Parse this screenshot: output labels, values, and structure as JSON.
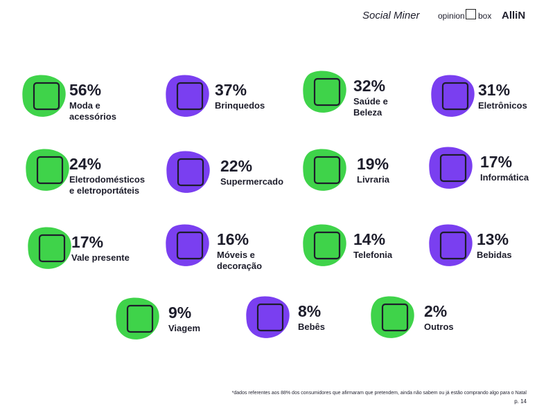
{
  "header": {
    "logos": [
      "Social Miner",
      "opinion",
      "box",
      "AlliN"
    ]
  },
  "items": [
    {
      "value": "56%",
      "label": [
        "Moda e",
        "acessórios"
      ],
      "color": "#3fd34a"
    },
    {
      "value": "37%",
      "label": [
        "Brinquedos"
      ],
      "color": "#7a3ff0"
    },
    {
      "value": "32%",
      "label": [
        "Saúde e",
        "Beleza"
      ],
      "color": "#3fd34a"
    },
    {
      "value": "31%",
      "label": [
        "Eletrônicos"
      ],
      "color": "#7a3ff0"
    },
    {
      "value": "24%",
      "label": [
        "Eletrodomésticos",
        "e eletroportáteis"
      ],
      "color": "#3fd34a"
    },
    {
      "value": "22%",
      "label": [
        "Supermercado"
      ],
      "color": "#7a3ff0"
    },
    {
      "value": "19%",
      "label": [
        "Livraria"
      ],
      "color": "#3fd34a"
    },
    {
      "value": "17%",
      "label": [
        "Informática"
      ],
      "color": "#7a3ff0"
    },
    {
      "value": "17%",
      "label": [
        "Vale presente"
      ],
      "color": "#3fd34a"
    },
    {
      "value": "16%",
      "label": [
        "Móveis e",
        "decoração"
      ],
      "color": "#7a3ff0"
    },
    {
      "value": "14%",
      "label": [
        "Telefonia"
      ],
      "color": "#3fd34a"
    },
    {
      "value": "13%",
      "label": [
        "Bebidas"
      ],
      "color": "#7a3ff0"
    },
    {
      "value": "9%",
      "label": [
        "Viagem"
      ],
      "color": "#3fd34a"
    },
    {
      "value": "8%",
      "label": [
        "Bebês"
      ],
      "color": "#7a3ff0"
    },
    {
      "value": "2%",
      "label": [
        "Outros"
      ],
      "color": "#3fd34a"
    }
  ],
  "footer": {
    "note": "*dados referentes aos 88% dos consumidores que afirmaram que pretendem, ainda não sabem ou já estão comprando algo para o Natal",
    "page": "p. 14"
  }
}
